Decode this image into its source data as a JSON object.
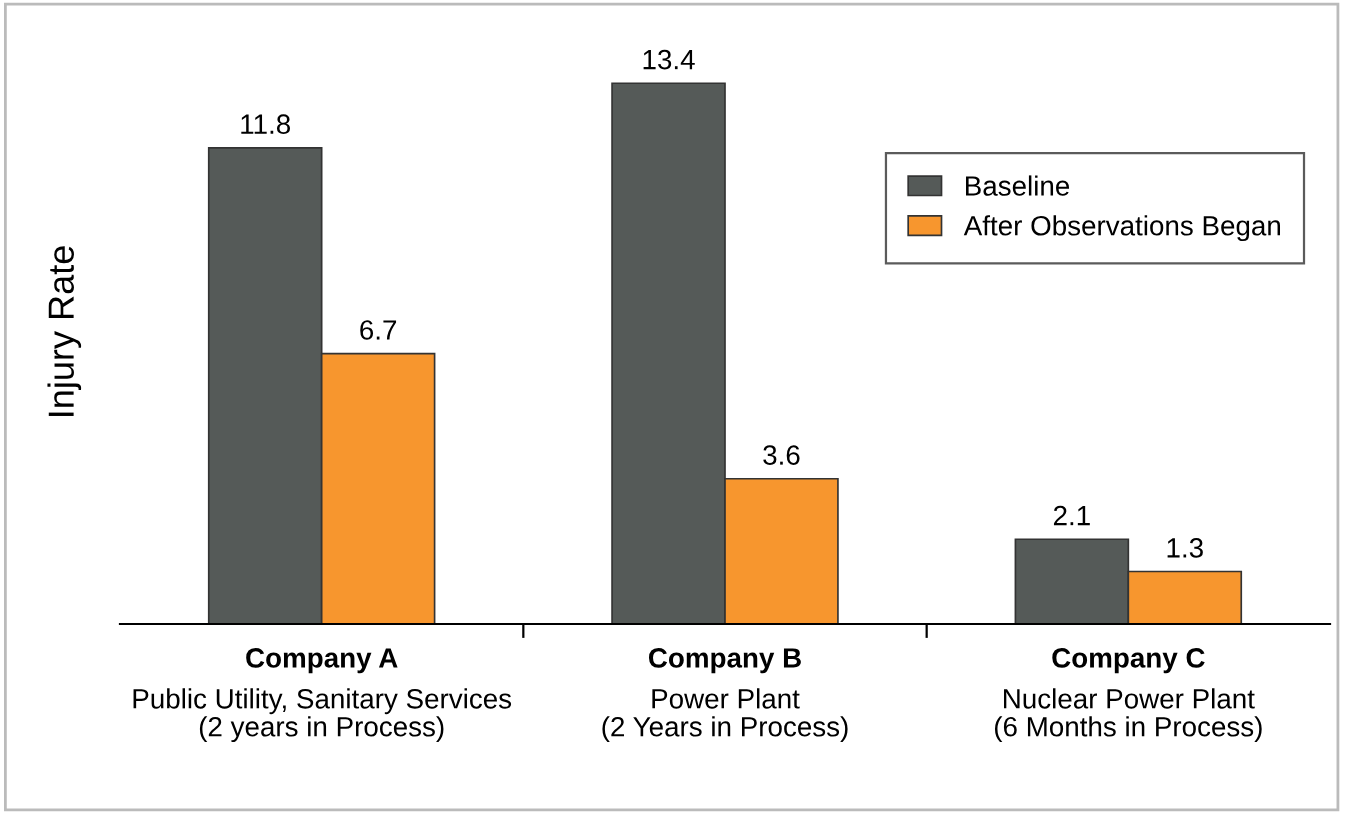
{
  "chart_data": {
    "type": "bar",
    "ylabel": "Injury Rate",
    "categories": [
      "Company A\nPublic Utility, Sanitary Services\n(2 years in Process)",
      "Company B\nPower Plant\n(2 Years in Process)",
      "Company C\nNuclear Power Plant\n(6 Months in Process)"
    ],
    "series": [
      {
        "name": "Baseline",
        "color": "#555a58",
        "values": [
          11.8,
          13.4,
          2.1
        ]
      },
      {
        "name": "After Observations Began",
        "color": "#f7962e",
        "values": [
          6.7,
          3.6,
          1.3
        ]
      }
    ],
    "data_labels": true,
    "legend": "top right",
    "grid": false,
    "tick_labels": "x"
  }
}
